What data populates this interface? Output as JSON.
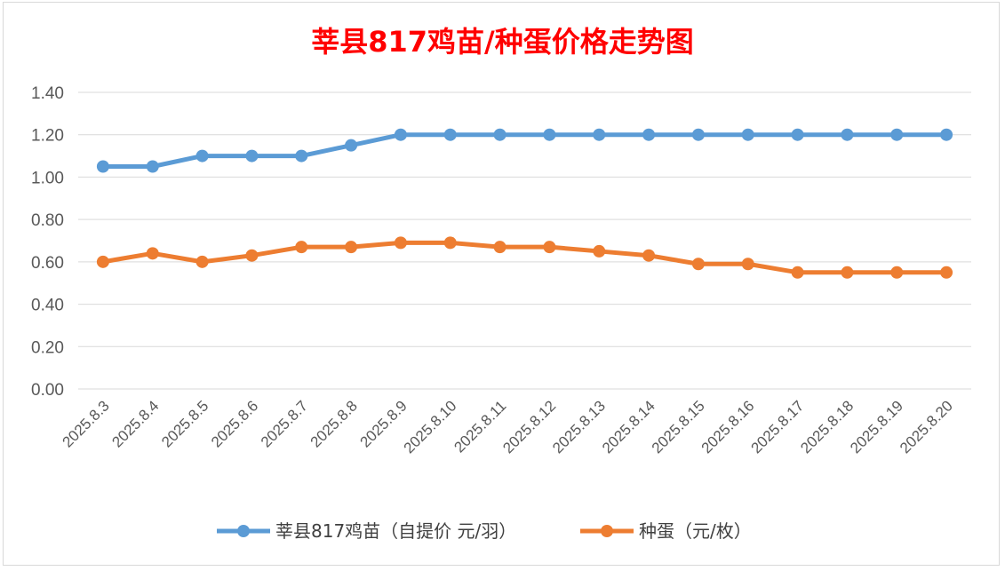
{
  "chart_data": {
    "type": "line",
    "title": "莘县817鸡苗/种蛋价格走势图",
    "title_color": "#ff0000",
    "categories": [
      "2025.8.3",
      "2025.8.4",
      "2025.8.5",
      "2025.8.6",
      "2025.8.7",
      "2025.8.8",
      "2025.8.9",
      "2025.8.10",
      "2025.8.11",
      "2025.8.12",
      "2025.8.13",
      "2025.8.14",
      "2025.8.15",
      "2025.8.16",
      "2025.8.17",
      "2025.8.18",
      "2025.8.19",
      "2025.8.20"
    ],
    "ylim": [
      0,
      1.4
    ],
    "yticks": [
      "0.00",
      "0.20",
      "0.40",
      "0.60",
      "0.80",
      "1.00",
      "1.20",
      "1.40"
    ],
    "grid": true,
    "legend_position": "bottom",
    "series": [
      {
        "name": "莘县817鸡苗（自提价 元/羽）",
        "color": "#5b9bd5",
        "values": [
          1.05,
          1.05,
          1.1,
          1.1,
          1.1,
          1.15,
          1.2,
          1.2,
          1.2,
          1.2,
          1.2,
          1.2,
          1.2,
          1.2,
          1.2,
          1.2,
          1.2,
          1.2
        ]
      },
      {
        "name": "种蛋（元/枚）",
        "color": "#ed7d31",
        "values": [
          0.6,
          0.64,
          0.6,
          0.63,
          0.67,
          0.67,
          0.69,
          0.69,
          0.67,
          0.67,
          0.65,
          0.63,
          0.59,
          0.59,
          0.55,
          0.55,
          0.55,
          0.55
        ]
      }
    ]
  }
}
